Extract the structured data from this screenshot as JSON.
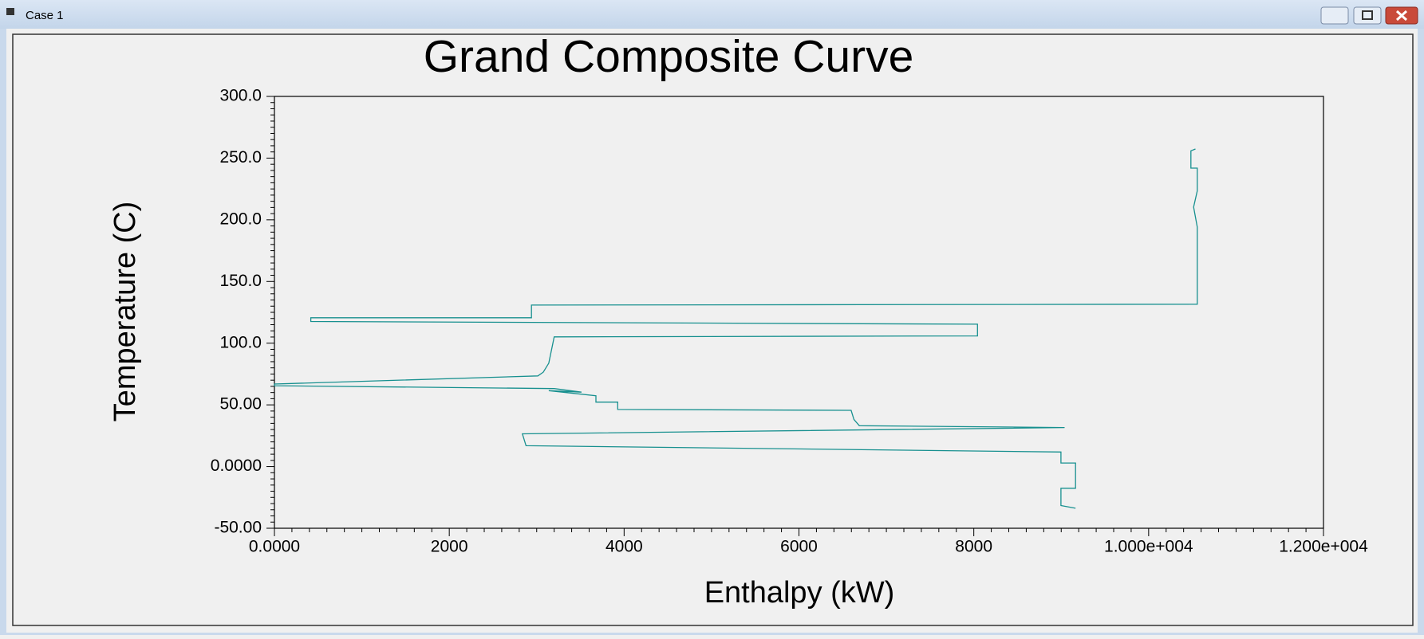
{
  "window": {
    "title": "Case 1"
  },
  "chart_data": {
    "type": "line",
    "title": "Grand Composite Curve",
    "x_label": "Enthalpy (kW)",
    "y_label": "Temperature (C)",
    "color": "#17908f",
    "x": [
      10535,
      10483,
      10483,
      10556,
      10556,
      10514,
      10556,
      10556,
      2940,
      2940,
      416,
      416,
      8042,
      8042,
      3200,
      3138,
      3075,
      3013,
      0,
      0,
      3200,
      3512,
      3138,
      3678,
      3678,
      3927,
      3927,
      6597,
      6629,
      6691,
      9039,
      2836,
      2878,
      8997,
      8997,
      9164,
      9164,
      8997,
      8997,
      9164
    ],
    "values": [
      257.4,
      255.9,
      241.9,
      241.9,
      223.5,
      210.3,
      194.1,
      131.6,
      130.9,
      120.6,
      120.6,
      117.6,
      115.4,
      105.9,
      105.1,
      83.8,
      76.5,
      73.5,
      66.9,
      65.5,
      63.2,
      60.3,
      61.5,
      57.4,
      52.2,
      52.2,
      46.3,
      45.6,
      38.2,
      33.1,
      31.6,
      26.5,
      16.9,
      11.8,
      2.9,
      2.9,
      -17.6,
      -17.6,
      -31.6,
      -33.8
    ],
    "xlim": [
      0,
      12000
    ],
    "ylim": [
      -50,
      300
    ],
    "xticks": [
      {
        "value": 0,
        "label": "0.0000"
      },
      2000,
      4000,
      6000,
      8000,
      {
        "value": 10000,
        "label": "1.000e+004"
      },
      {
        "value": 12000,
        "label": "1.200e+004"
      }
    ],
    "yticks": [
      {
        "value": -50,
        "label": "-50.00"
      },
      {
        "value": 0,
        "label": "0.0000"
      },
      {
        "value": 50,
        "label": "50.00"
      },
      {
        "value": 100,
        "label": "100.0"
      },
      {
        "value": 150,
        "label": "150.0"
      },
      {
        "value": 200,
        "label": "200.0"
      },
      {
        "value": 250,
        "label": "250.0"
      },
      {
        "value": 300,
        "label": "300.0"
      }
    ],
    "grid": false
  }
}
